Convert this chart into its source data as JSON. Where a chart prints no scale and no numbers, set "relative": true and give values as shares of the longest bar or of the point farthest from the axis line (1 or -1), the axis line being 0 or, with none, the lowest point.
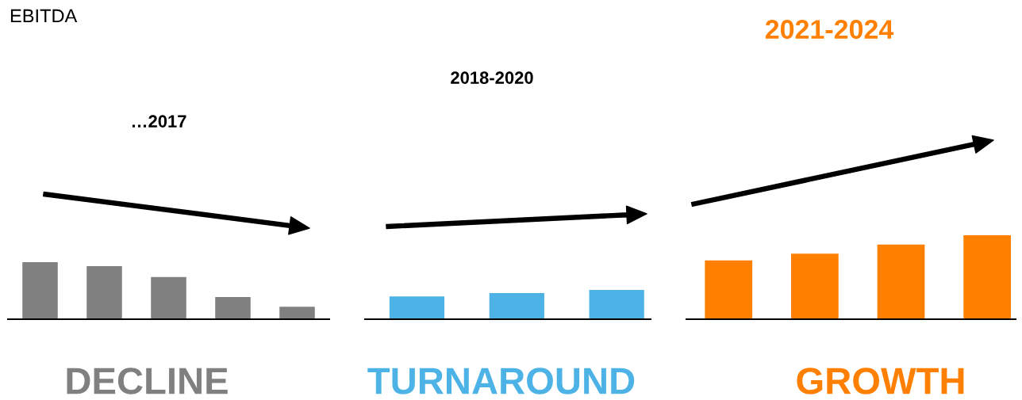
{
  "chart_data": [
    {
      "type": "bar",
      "relative": true,
      "title": "…2017",
      "xlabel": "DECLINE",
      "annotations": [
        "EBITDA"
      ],
      "categories": [
        null,
        null,
        null,
        null,
        null
      ],
      "values": [
        1,
        0.93,
        0.74,
        0.39,
        0.22
      ],
      "color": "#808080"
    },
    {
      "type": "bar",
      "relative": true,
      "title": "2018-2020",
      "xlabel": "TURNAROUND",
      "categories": [
        null,
        null,
        null
      ],
      "values": [
        0.78,
        0.89,
        1
      ],
      "color": "#4db3e6"
    },
    {
      "type": "bar",
      "relative": true,
      "title": "2021-2024",
      "xlabel": "GROWTH",
      "categories": [
        null,
        null,
        null,
        null
      ],
      "values": [
        0.7,
        0.78,
        0.89,
        1
      ],
      "color": "#ff7f00"
    }
  ]
}
